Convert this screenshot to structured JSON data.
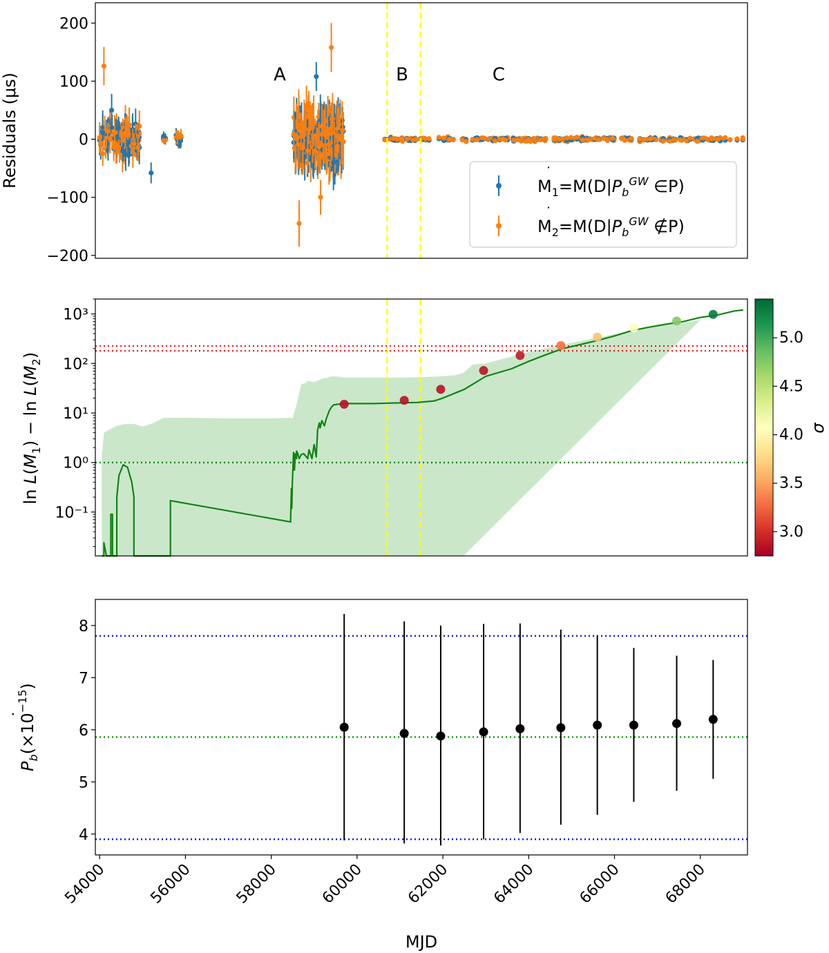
{
  "chart_data": [
    {
      "type": "scatter",
      "name": "residuals",
      "ylabel": "Residuals (μs)",
      "xlim": [
        53900,
        69100
      ],
      "ylim": [
        -205,
        235
      ],
      "yticks": [
        -200,
        -100,
        0,
        100,
        200
      ],
      "ytick_labels": [
        "−200",
        "−100",
        "0",
        "100",
        "200"
      ],
      "vlines": [
        60700,
        61480
      ],
      "vline_color": "#ffff00",
      "region_labels": [
        {
          "text": "A",
          "x": 58200,
          "y": 112
        },
        {
          "text": "B",
          "x": 61050,
          "y": 112
        },
        {
          "text": "C",
          "x": 63300,
          "y": 112
        }
      ],
      "legend": {
        "placement": "lower-right",
        "entries": [
          {
            "label": "M1=M(D|Pb GW ∈P)",
            "color": "#1f77b4"
          },
          {
            "label": "M2=M(D|Pb GW ∉P)",
            "color": "#ff7f0e"
          }
        ]
      },
      "series": [
        {
          "name": "M1",
          "color": "#1f77b4"
        },
        {
          "name": "M2",
          "color": "#ff7f0e"
        }
      ],
      "highlight_points": [
        {
          "series": "M2",
          "x": 54100,
          "y": 126,
          "err": 33
        },
        {
          "series": "M1",
          "x": 54280,
          "y": 50,
          "err": 28
        },
        {
          "series": "M1",
          "x": 55200,
          "y": -58,
          "err": 18
        },
        {
          "series": "M2",
          "x": 58650,
          "y": -145,
          "err": 40
        },
        {
          "series": "M2",
          "x": 59400,
          "y": 158,
          "err": 42
        },
        {
          "series": "M1",
          "x": 59050,
          "y": 108,
          "err": 25
        },
        {
          "series": "M1",
          "x": 59450,
          "y": -40,
          "err": 48
        },
        {
          "series": "M2",
          "x": 59150,
          "y": -100,
          "err": 30
        }
      ],
      "clusters": [
        {
          "x": [
            54000,
            54950
          ],
          "spread": 30,
          "err": 24,
          "n": 70
        },
        {
          "x": [
            55480,
            55560
          ],
          "spread": 7,
          "err": 8,
          "n": 6
        },
        {
          "x": [
            55780,
            55900
          ],
          "spread": 10,
          "err": 12,
          "n": 8
        },
        {
          "x": [
            58520,
            59700
          ],
          "spread": 45,
          "err": 38,
          "n": 160
        },
        {
          "x": [
            60640,
            69000
          ],
          "spread": 4,
          "err": 3,
          "n": 230
        }
      ]
    },
    {
      "type": "line",
      "name": "log-likelihood",
      "ylabel": "ln L(M1) − ln L(M2)",
      "yscale": "log",
      "ylim": [
        0.013,
        2000
      ],
      "yticks": [
        0.1,
        1,
        10,
        100,
        1000
      ],
      "ytick_labels": [
        "10⁻¹",
        "10⁰",
        "10¹",
        "10²",
        "10³"
      ],
      "hlines": [
        {
          "y": 1,
          "color": "#008000",
          "style": "dotted"
        },
        {
          "y": 180,
          "color": "#e8141a",
          "style": "dotted"
        },
        {
          "y": 225,
          "color": "#e8141a",
          "style": "dotted"
        }
      ],
      "vlines": [
        60700,
        61480
      ],
      "line": {
        "color": "#128212",
        "x": [
          54050,
          54100,
          54100,
          54160,
          54220,
          54260,
          54260,
          54300,
          54300,
          54400,
          54400,
          54450,
          54550,
          54650,
          54750,
          54800,
          54800,
          54950,
          54950,
          55400,
          55400,
          55650,
          55650,
          58450,
          58470,
          58480,
          58490,
          58520,
          58540,
          58560,
          58590,
          58590,
          58620,
          58650,
          58700,
          58760,
          58850,
          58880,
          58950,
          59000,
          59050,
          59080,
          59120,
          59140,
          59180,
          59240,
          59280,
          59350,
          59400,
          59450,
          59550,
          59700,
          60000,
          60400,
          60700,
          61000,
          61400,
          61800,
          62000,
          62500,
          63000,
          63600,
          64000,
          64400,
          64800,
          65200,
          65600,
          66000,
          66400,
          66800,
          67200,
          67600,
          68000,
          68400,
          68800,
          69000
        ],
        "y": [
          0.013,
          0.013,
          0.024,
          0.013,
          0.013,
          0.013,
          0.09,
          0.09,
          0.013,
          0.013,
          0.2,
          0.55,
          0.9,
          0.8,
          0.4,
          0.2,
          0.013,
          0.013,
          0.013,
          0.013,
          0.013,
          0.013,
          0.17,
          0.063,
          0.3,
          0.12,
          0.35,
          1.6,
          0.7,
          1.5,
          1.2,
          1.7,
          1.5,
          1.2,
          1.45,
          1.5,
          1.2,
          1.8,
          1.2,
          2.3,
          1.3,
          4.5,
          6.3,
          5.0,
          7.0,
          5.5,
          7.5,
          11,
          13,
          14.5,
          15,
          15.5,
          15.5,
          15.5,
          15.8,
          16,
          16.3,
          17.5,
          20,
          30,
          55,
          78,
          110,
          150,
          200,
          240,
          290,
          360,
          460,
          540,
          620,
          700,
          850,
          950,
          1150,
          1200
        ]
      },
      "band": {
        "color": "#2ca02c",
        "x": [
          54050,
          54100,
          54200,
          54400,
          54600,
          54800,
          55000,
          55200,
          55500,
          56000,
          57000,
          58000,
          58500,
          58600,
          58700,
          58800,
          58850,
          59000,
          59200,
          59300,
          59400,
          59500,
          59700,
          60000,
          60500,
          61000,
          61500,
          62000,
          62300,
          62480,
          62700,
          63000,
          63500,
          64000,
          64500,
          65000,
          65500,
          66000,
          66500,
          67000,
          67500,
          68000
        ],
        "upper": [
          1.3,
          4,
          4.5,
          5.5,
          6,
          6,
          5.3,
          6,
          8,
          8,
          7.8,
          7.8,
          8,
          16,
          38,
          40,
          45,
          42,
          50,
          52,
          55,
          55,
          52,
          52,
          52,
          52,
          53,
          55,
          58,
          65,
          95,
          100,
          130,
          170,
          210,
          260,
          320,
          390,
          470,
          560,
          650,
          750
        ],
        "lower_end_x": 62480
      },
      "points": [
        {
          "x": 59700,
          "y": 15,
          "sigma": 2.85
        },
        {
          "x": 61100,
          "y": 18,
          "sigma": 2.85
        },
        {
          "x": 61950,
          "y": 30,
          "sigma": 2.85
        },
        {
          "x": 62950,
          "y": 72,
          "sigma": 2.85
        },
        {
          "x": 63800,
          "y": 145,
          "sigma": 2.9
        },
        {
          "x": 64750,
          "y": 230,
          "sigma": 3.3
        },
        {
          "x": 65600,
          "y": 340,
          "sigma": 3.65
        },
        {
          "x": 66450,
          "y": 520,
          "sigma": 4.1
        },
        {
          "x": 67450,
          "y": 720,
          "sigma": 4.75
        },
        {
          "x": 68300,
          "y": 980,
          "sigma": 5.3
        }
      ],
      "colorbar": {
        "label": "σ",
        "min": 2.75,
        "max": 5.4,
        "ticks": [
          3.0,
          3.5,
          4.0,
          4.5,
          5.0
        ],
        "tick_labels": [
          "3.0",
          "3.5",
          "4.0",
          "4.5",
          "5.0"
        ]
      }
    },
    {
      "type": "scatter",
      "name": "pbdot",
      "ylabel": "Pb (×10⁻¹⁵)",
      "xlabel": "MJD",
      "xlim": [
        53900,
        69100
      ],
      "ylim": [
        3.6,
        8.5
      ],
      "yticks": [
        4,
        5,
        6,
        7,
        8
      ],
      "ytick_labels": [
        "4",
        "5",
        "6",
        "7",
        "8"
      ],
      "xticks": [
        54000,
        56000,
        58000,
        60000,
        62000,
        64000,
        66000,
        68000
      ],
      "xtick_labels": [
        "54000",
        "56000",
        "58000",
        "60000",
        "62000",
        "64000",
        "66000",
        "68000"
      ],
      "hlines": [
        {
          "y": 7.8,
          "color": "#1010e0",
          "style": "dotted"
        },
        {
          "y": 5.86,
          "color": "#0a960a",
          "style": "dotted"
        },
        {
          "y": 3.9,
          "color": "#1010e0",
          "style": "dotted"
        }
      ],
      "points": [
        {
          "x": 59700,
          "y": 6.05,
          "lo": 3.88,
          "hi": 8.22
        },
        {
          "x": 61100,
          "y": 5.93,
          "lo": 3.82,
          "hi": 8.08
        },
        {
          "x": 61950,
          "y": 5.88,
          "lo": 3.78,
          "hi": 8.0
        },
        {
          "x": 62950,
          "y": 5.96,
          "lo": 3.9,
          "hi": 8.03
        },
        {
          "x": 63800,
          "y": 6.02,
          "lo": 4.02,
          "hi": 8.04
        },
        {
          "x": 64750,
          "y": 6.04,
          "lo": 4.18,
          "hi": 7.92
        },
        {
          "x": 65600,
          "y": 6.09,
          "lo": 4.37,
          "hi": 7.81
        },
        {
          "x": 66450,
          "y": 6.09,
          "lo": 4.62,
          "hi": 7.57
        },
        {
          "x": 67450,
          "y": 6.12,
          "lo": 4.83,
          "hi": 7.42
        },
        {
          "x": 68300,
          "y": 6.2,
          "lo": 5.06,
          "hi": 7.34
        }
      ]
    }
  ]
}
